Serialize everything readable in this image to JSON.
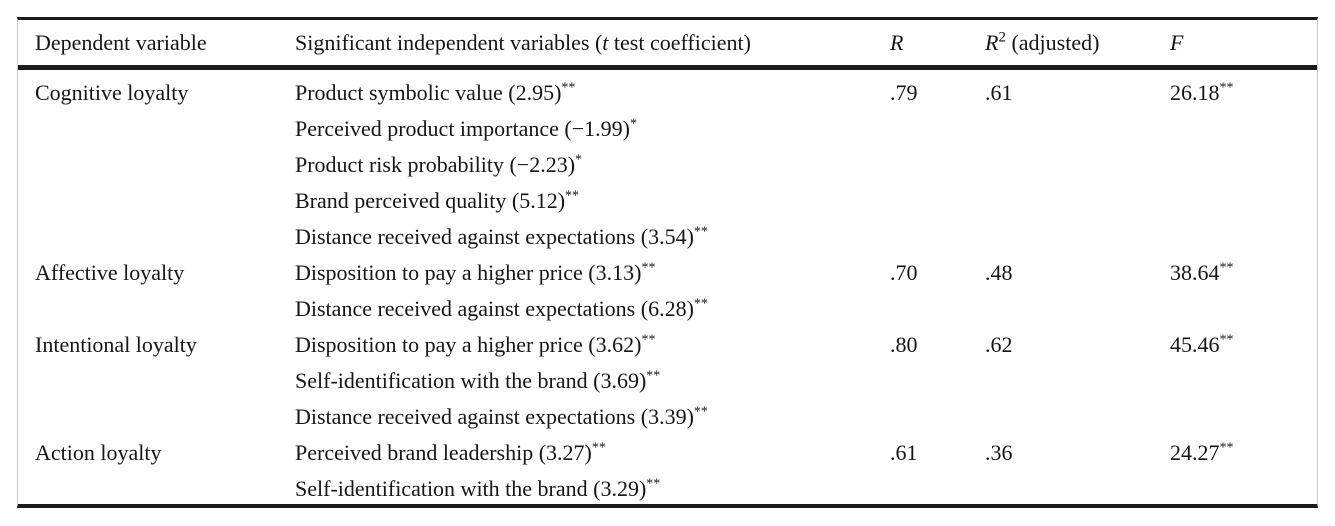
{
  "table": {
    "header": {
      "col1": "Dependent variable",
      "col2_pre": "Significant independent variables (",
      "col2_italic": "t",
      "col2_post": " test coefficient)",
      "col3": "R",
      "col4_base": "R",
      "col4_sup": "2",
      "col4_rest": " (adjusted)",
      "col5": "F"
    },
    "rows": [
      {
        "dependent": "Cognitive loyalty",
        "variables": [
          {
            "text": "Product symbolic value (2.95)",
            "sig": "**"
          },
          {
            "text": "Perceived product importance (−1.99)",
            "sig": "*"
          },
          {
            "text": "Product risk probability (−2.23)",
            "sig": "*"
          },
          {
            "text": "Brand perceived quality (5.12)",
            "sig": "**"
          },
          {
            "text": "Distance received against expectations (3.54)",
            "sig": "**"
          }
        ],
        "r": ".79",
        "r2": ".61",
        "f": {
          "value": "26.18",
          "sig": "**"
        }
      },
      {
        "dependent": "Affective loyalty",
        "variables": [
          {
            "text": "Disposition to pay a higher price (3.13)",
            "sig": "**"
          },
          {
            "text": "Distance received against expectations (6.28)",
            "sig": "**"
          }
        ],
        "r": ".70",
        "r2": ".48",
        "f": {
          "value": "38.64",
          "sig": "**"
        }
      },
      {
        "dependent": "Intentional loyalty",
        "variables": [
          {
            "text": "Disposition to pay a higher price (3.62)",
            "sig": "**"
          },
          {
            "text": "Self-identification with the brand (3.69)",
            "sig": "**"
          },
          {
            "text": "Distance received against expectations (3.39)",
            "sig": "**"
          }
        ],
        "r": ".80",
        "r2": ".62",
        "f": {
          "value": "45.46",
          "sig": "**"
        }
      },
      {
        "dependent": "Action loyalty",
        "variables": [
          {
            "text": "Perceived brand leadership (3.27)",
            "sig": "**"
          },
          {
            "text": "Self-identification with the brand (3.29)",
            "sig": "**"
          }
        ],
        "r": ".61",
        "r2": ".36",
        "f": {
          "value": "24.27",
          "sig": "**"
        }
      }
    ]
  }
}
